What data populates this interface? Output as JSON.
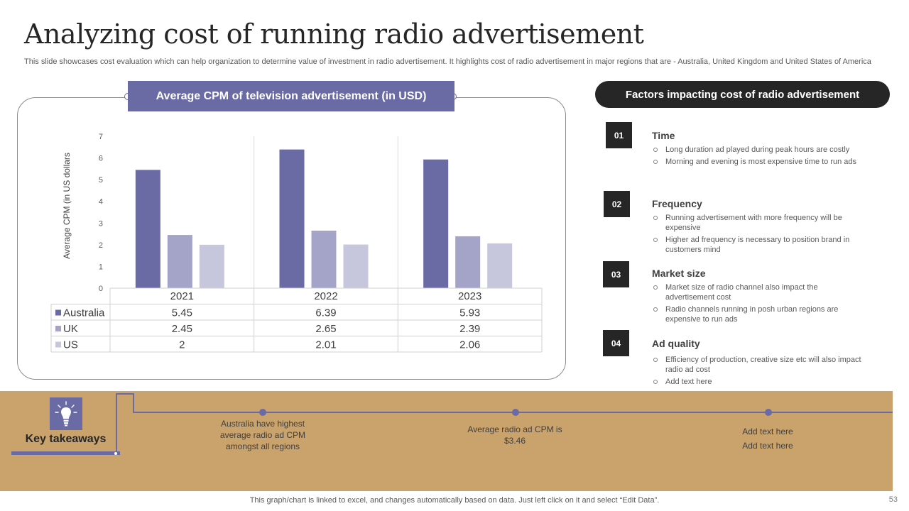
{
  "slide": {
    "title": "Analyzing cost of running radio advertisement",
    "subtitle": "This slide showcases cost evaluation which can help organization to determine value of investment in radio advertisement. It highlights cost of radio advertisement in major regions that are - Australia, United Kingdom and United States of America",
    "footer_note": "This graph/chart is linked to excel,  and changes automatically based on data. Just left click on it and select “Edit Data”.",
    "page_number": "53"
  },
  "colors": {
    "australia": "#6a6aa5",
    "uk": "#a4a4c8",
    "us": "#c6c6dd",
    "band": "#c9a26c",
    "dark": "#262626"
  },
  "chart_banner": "Average CPM of television advertisement (in USD)",
  "chart_data": {
    "type": "bar",
    "title": "Average CPM of television advertisement (in USD)",
    "xlabel": "",
    "ylabel": "Average  CPM (in US dollars",
    "categories": [
      "2021",
      "2022",
      "2023"
    ],
    "series": [
      {
        "name": "Australia",
        "values": [
          5.45,
          6.39,
          5.93
        ],
        "labels": [
          "5.45",
          "6.39",
          "5.93"
        ]
      },
      {
        "name": "UK",
        "values": [
          2.45,
          2.65,
          2.39
        ],
        "labels": [
          "2.45",
          "2.65",
          "2.39"
        ]
      },
      {
        "name": "US",
        "values": [
          2,
          2.01,
          2.06
        ],
        "labels": [
          "2",
          "2.01",
          "2.06"
        ]
      }
    ],
    "ylim": [
      0,
      7
    ],
    "yticks": [
      0,
      1,
      2,
      3,
      4,
      5,
      6,
      7
    ],
    "grid": "vertical category separators",
    "legend": "data table below chart"
  },
  "factors": {
    "header": "Factors impacting cost of radio advertisement",
    "items": [
      {
        "number": "01",
        "title": "Time",
        "points": [
          "Long duration ad played during peak hours are costly",
          "Morning and evening is most expensive time to run ads"
        ]
      },
      {
        "number": "02",
        "title": "Frequency",
        "points": [
          "Running advertisement with more frequency will be expensive",
          "Higher ad frequency is necessary to position brand in customers mind"
        ]
      },
      {
        "number": "03",
        "title": "Market size",
        "points": [
          "Market size of radio channel also impact the advertisement cost",
          "Radio channels running in posh urban regions are expensive to run ads"
        ]
      },
      {
        "number": "04",
        "title": "Ad  quality",
        "points": [
          "Efficiency of production, creative size etc will also impact radio ad cost",
          "Add text here"
        ]
      }
    ]
  },
  "takeaways": {
    "label": "Key takeaways",
    "icon": "lightbulb-icon",
    "points": [
      "Australia have  highest average  radio  ad CPM amongst all regions",
      "Average  radio ad CPM is $3.46",
      "Add text here\nAdd text here"
    ]
  }
}
